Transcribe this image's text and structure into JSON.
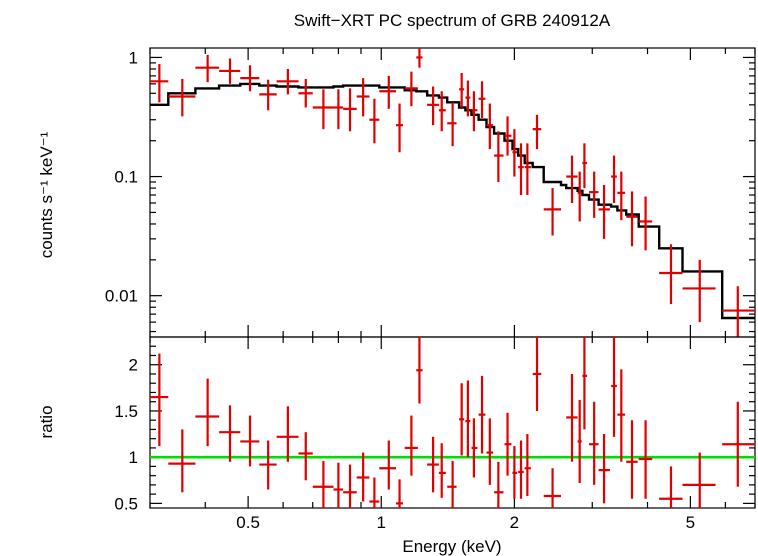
{
  "chart_data": {
    "type": "scatter",
    "title": "Swift−XRT PC spectrum of GRB 240912A",
    "xlabel": "Energy (keV)",
    "x_scale": "log",
    "xlim": [
      0.3,
      7.0
    ],
    "x_ticks": [
      {
        "value": 0.5,
        "label": "0.5"
      },
      {
        "value": 1,
        "label": "1"
      },
      {
        "value": 2,
        "label": "2"
      },
      {
        "value": 5,
        "label": "5"
      }
    ],
    "colors": {
      "data": "#e00000",
      "model": "#000000",
      "unity": "#00dd00"
    },
    "top_panel": {
      "ylabel": "counts s⁻¹ keV⁻¹",
      "y_scale": "log",
      "ylim": [
        0.0045,
        1.2
      ],
      "y_ticks": [
        {
          "value": 1,
          "label": "1"
        },
        {
          "value": 0.1,
          "label": "0.1"
        },
        {
          "value": 0.01,
          "label": "0.01"
        }
      ],
      "data": [
        {
          "x": 0.315,
          "xlo": 0.3,
          "xhi": 0.33,
          "y": 0.63,
          "ylo": 0.42,
          "yhi": 0.88
        },
        {
          "x": 0.355,
          "xlo": 0.33,
          "xhi": 0.38,
          "y": 0.47,
          "ylo": 0.32,
          "yhi": 0.66
        },
        {
          "x": 0.405,
          "xlo": 0.38,
          "xhi": 0.43,
          "y": 0.82,
          "ylo": 0.62,
          "yhi": 1.05
        },
        {
          "x": 0.455,
          "xlo": 0.43,
          "xhi": 0.48,
          "y": 0.77,
          "ylo": 0.6,
          "yhi": 0.98
        },
        {
          "x": 0.505,
          "xlo": 0.48,
          "xhi": 0.53,
          "y": 0.67,
          "ylo": 0.52,
          "yhi": 0.86
        },
        {
          "x": 0.555,
          "xlo": 0.53,
          "xhi": 0.58,
          "y": 0.49,
          "ylo": 0.36,
          "yhi": 0.65
        },
        {
          "x": 0.615,
          "xlo": 0.58,
          "xhi": 0.65,
          "y": 0.63,
          "ylo": 0.49,
          "yhi": 0.8
        },
        {
          "x": 0.675,
          "xlo": 0.65,
          "xhi": 0.7,
          "y": 0.5,
          "ylo": 0.38,
          "yhi": 0.66
        },
        {
          "x": 0.74,
          "xlo": 0.7,
          "xhi": 0.78,
          "y": 0.38,
          "ylo": 0.25,
          "yhi": 0.54
        },
        {
          "x": 0.8,
          "xlo": 0.78,
          "xhi": 0.82,
          "y": 0.38,
          "ylo": 0.25,
          "yhi": 0.54
        },
        {
          "x": 0.85,
          "xlo": 0.82,
          "xhi": 0.88,
          "y": 0.37,
          "ylo": 0.24,
          "yhi": 0.55
        },
        {
          "x": 0.91,
          "xlo": 0.88,
          "xhi": 0.94,
          "y": 0.47,
          "ylo": 0.32,
          "yhi": 0.67
        },
        {
          "x": 0.965,
          "xlo": 0.94,
          "xhi": 0.99,
          "y": 0.3,
          "ylo": 0.19,
          "yhi": 0.45
        },
        {
          "x": 1.04,
          "xlo": 0.99,
          "xhi": 1.08,
          "y": 0.52,
          "ylo": 0.37,
          "yhi": 0.7
        },
        {
          "x": 1.1,
          "xlo": 1.08,
          "xhi": 1.12,
          "y": 0.27,
          "ylo": 0.16,
          "yhi": 0.41
        },
        {
          "x": 1.17,
          "xlo": 1.13,
          "xhi": 1.21,
          "y": 0.55,
          "ylo": 0.39,
          "yhi": 0.76
        },
        {
          "x": 1.22,
          "xlo": 1.2,
          "xhi": 1.24,
          "y": 1.0,
          "ylo": 0.82,
          "yhi": 1.2
        },
        {
          "x": 1.31,
          "xlo": 1.27,
          "xhi": 1.35,
          "y": 0.4,
          "ylo": 0.27,
          "yhi": 0.57
        },
        {
          "x": 1.37,
          "xlo": 1.35,
          "xhi": 1.4,
          "y": 0.36,
          "ylo": 0.24,
          "yhi": 0.52
        },
        {
          "x": 1.45,
          "xlo": 1.41,
          "xhi": 1.48,
          "y": 0.28,
          "ylo": 0.18,
          "yhi": 0.42
        },
        {
          "x": 1.52,
          "xlo": 1.5,
          "xhi": 1.54,
          "y": 0.54,
          "ylo": 0.38,
          "yhi": 0.74
        },
        {
          "x": 1.57,
          "xlo": 1.55,
          "xhi": 1.59,
          "y": 0.46,
          "ylo": 0.32,
          "yhi": 0.64
        },
        {
          "x": 1.62,
          "xlo": 1.6,
          "xhi": 1.65,
          "y": 0.36,
          "ylo": 0.24,
          "yhi": 0.52
        },
        {
          "x": 1.69,
          "xlo": 1.66,
          "xhi": 1.72,
          "y": 0.45,
          "ylo": 0.31,
          "yhi": 0.63
        },
        {
          "x": 1.76,
          "xlo": 1.73,
          "xhi": 1.79,
          "y": 0.27,
          "ylo": 0.17,
          "yhi": 0.41
        },
        {
          "x": 1.84,
          "xlo": 1.8,
          "xhi": 1.89,
          "y": 0.15,
          "ylo": 0.09,
          "yhi": 0.24
        },
        {
          "x": 1.93,
          "xlo": 1.9,
          "xhi": 1.97,
          "y": 0.22,
          "ylo": 0.15,
          "yhi": 0.32
        },
        {
          "x": 2.0,
          "xlo": 1.98,
          "xhi": 2.03,
          "y": 0.16,
          "ylo": 0.1,
          "yhi": 0.25
        },
        {
          "x": 2.07,
          "xlo": 2.04,
          "xhi": 2.1,
          "y": 0.12,
          "ylo": 0.07,
          "yhi": 0.19
        },
        {
          "x": 2.14,
          "xlo": 2.11,
          "xhi": 2.18,
          "y": 0.12,
          "ylo": 0.07,
          "yhi": 0.19
        },
        {
          "x": 2.25,
          "xlo": 2.2,
          "xhi": 2.3,
          "y": 0.25,
          "ylo": 0.17,
          "yhi": 0.33
        },
        {
          "x": 2.44,
          "xlo": 2.33,
          "xhi": 2.55,
          "y": 0.053,
          "ylo": 0.032,
          "yhi": 0.08
        },
        {
          "x": 2.7,
          "xlo": 2.62,
          "xhi": 2.78,
          "y": 0.1,
          "ylo": 0.06,
          "yhi": 0.15
        },
        {
          "x": 2.81,
          "xlo": 2.78,
          "xhi": 2.84,
          "y": 0.073,
          "ylo": 0.042,
          "yhi": 0.11
        },
        {
          "x": 2.88,
          "xlo": 2.85,
          "xhi": 2.92,
          "y": 0.13,
          "ylo": 0.08,
          "yhi": 0.19
        },
        {
          "x": 3.03,
          "xlo": 2.95,
          "xhi": 3.1,
          "y": 0.074,
          "ylo": 0.045,
          "yhi": 0.11
        },
        {
          "x": 3.19,
          "xlo": 3.1,
          "xhi": 3.29,
          "y": 0.053,
          "ylo": 0.03,
          "yhi": 0.085
        },
        {
          "x": 3.36,
          "xlo": 3.31,
          "xhi": 3.41,
          "y": 0.1,
          "ylo": 0.06,
          "yhi": 0.15
        },
        {
          "x": 3.49,
          "xlo": 3.42,
          "xhi": 3.56,
          "y": 0.073,
          "ylo": 0.043,
          "yhi": 0.11
        },
        {
          "x": 3.69,
          "xlo": 3.58,
          "xhi": 3.8,
          "y": 0.046,
          "ylo": 0.026,
          "yhi": 0.075
        },
        {
          "x": 3.96,
          "xlo": 3.82,
          "xhi": 4.1,
          "y": 0.042,
          "ylo": 0.024,
          "yhi": 0.068
        },
        {
          "x": 4.52,
          "xlo": 4.25,
          "xhi": 4.8,
          "y": 0.0155,
          "ylo": 0.0085,
          "yhi": 0.027
        },
        {
          "x": 5.25,
          "xlo": 4.8,
          "xhi": 5.7,
          "y": 0.0115,
          "ylo": 0.006,
          "yhi": 0.02
        },
        {
          "x": 6.4,
          "xlo": 5.9,
          "xhi": 7.0,
          "y": 0.0075,
          "ylo": 0.0045,
          "yhi": 0.012
        }
      ],
      "model": [
        [
          0.3,
          0.4
        ],
        [
          0.33,
          0.5
        ],
        [
          0.38,
          0.55
        ],
        [
          0.43,
          0.58
        ],
        [
          0.48,
          0.6
        ],
        [
          0.53,
          0.58
        ],
        [
          0.58,
          0.57
        ],
        [
          0.65,
          0.56
        ],
        [
          0.7,
          0.56
        ],
        [
          0.78,
          0.57
        ],
        [
          0.82,
          0.58
        ],
        [
          0.88,
          0.58
        ],
        [
          0.94,
          0.58
        ],
        [
          0.99,
          0.56
        ],
        [
          1.08,
          0.56
        ],
        [
          1.13,
          0.53
        ],
        [
          1.2,
          0.52
        ],
        [
          1.27,
          0.48
        ],
        [
          1.35,
          0.46
        ],
        [
          1.41,
          0.42
        ],
        [
          1.5,
          0.38
        ],
        [
          1.55,
          0.36
        ],
        [
          1.6,
          0.33
        ],
        [
          1.66,
          0.3
        ],
        [
          1.73,
          0.26
        ],
        [
          1.8,
          0.23
        ],
        [
          1.9,
          0.2
        ],
        [
          1.98,
          0.17
        ],
        [
          2.04,
          0.15
        ],
        [
          2.11,
          0.13
        ],
        [
          2.2,
          0.12
        ],
        [
          2.33,
          0.09
        ],
        [
          2.55,
          0.085
        ],
        [
          2.62,
          0.08
        ],
        [
          2.78,
          0.076
        ],
        [
          2.85,
          0.07
        ],
        [
          2.95,
          0.064
        ],
        [
          3.1,
          0.058
        ],
        [
          3.31,
          0.056
        ],
        [
          3.42,
          0.052
        ],
        [
          3.58,
          0.048
        ],
        [
          3.82,
          0.038
        ],
        [
          4.25,
          0.025
        ],
        [
          4.8,
          0.016
        ],
        [
          5.9,
          0.0065
        ]
      ],
      "model_end": 7.0
    },
    "bottom_panel": {
      "ylabel": "ratio",
      "y_scale": "linear",
      "ylim": [
        0.45,
        2.3
      ],
      "y_ticks": [
        {
          "value": 2,
          "label": "2"
        },
        {
          "value": 1.5,
          "label": "1.5"
        },
        {
          "value": 1,
          "label": "1"
        },
        {
          "value": 0.5,
          "label": "0.5"
        }
      ],
      "unity_line": 1,
      "data": [
        {
          "x": 0.315,
          "xlo": 0.3,
          "xhi": 0.33,
          "y": 1.65,
          "ylo": 1.12,
          "yhi": 2.12
        },
        {
          "x": 0.355,
          "xlo": 0.33,
          "xhi": 0.38,
          "y": 0.93,
          "ylo": 0.62,
          "yhi": 1.3
        },
        {
          "x": 0.405,
          "xlo": 0.38,
          "xhi": 0.43,
          "y": 1.44,
          "ylo": 1.12,
          "yhi": 1.85
        },
        {
          "x": 0.455,
          "xlo": 0.43,
          "xhi": 0.48,
          "y": 1.27,
          "ylo": 0.95,
          "yhi": 1.56
        },
        {
          "x": 0.505,
          "xlo": 0.48,
          "xhi": 0.53,
          "y": 1.17,
          "ylo": 0.9,
          "yhi": 1.45
        },
        {
          "x": 0.555,
          "xlo": 0.53,
          "xhi": 0.58,
          "y": 0.92,
          "ylo": 0.65,
          "yhi": 1.18
        },
        {
          "x": 0.615,
          "xlo": 0.58,
          "xhi": 0.65,
          "y": 1.22,
          "ylo": 0.95,
          "yhi": 1.55
        },
        {
          "x": 0.675,
          "xlo": 0.65,
          "xhi": 0.7,
          "y": 1.04,
          "ylo": 0.75,
          "yhi": 1.27
        },
        {
          "x": 0.74,
          "xlo": 0.7,
          "xhi": 0.78,
          "y": 0.68,
          "ylo": 0.45,
          "yhi": 0.96
        },
        {
          "x": 0.8,
          "xlo": 0.78,
          "xhi": 0.82,
          "y": 0.65,
          "ylo": 0.45,
          "yhi": 0.94
        },
        {
          "x": 0.85,
          "xlo": 0.82,
          "xhi": 0.88,
          "y": 0.62,
          "ylo": 0.45,
          "yhi": 0.92
        },
        {
          "x": 0.91,
          "xlo": 0.88,
          "xhi": 0.94,
          "y": 0.78,
          "ylo": 0.52,
          "yhi": 1.05
        },
        {
          "x": 0.965,
          "xlo": 0.94,
          "xhi": 0.99,
          "y": 0.52,
          "ylo": 0.45,
          "yhi": 0.78
        },
        {
          "x": 1.04,
          "xlo": 0.99,
          "xhi": 1.08,
          "y": 0.88,
          "ylo": 0.65,
          "yhi": 1.18
        },
        {
          "x": 1.1,
          "xlo": 1.08,
          "xhi": 1.12,
          "y": 0.5,
          "ylo": 0.45,
          "yhi": 0.76
        },
        {
          "x": 1.17,
          "xlo": 1.13,
          "xhi": 1.21,
          "y": 1.1,
          "ylo": 0.8,
          "yhi": 1.45
        },
        {
          "x": 1.22,
          "xlo": 1.2,
          "xhi": 1.24,
          "y": 1.94,
          "ylo": 1.58,
          "yhi": 2.3
        },
        {
          "x": 1.31,
          "xlo": 1.27,
          "xhi": 1.35,
          "y": 0.92,
          "ylo": 0.62,
          "yhi": 1.22
        },
        {
          "x": 1.37,
          "xlo": 1.35,
          "xhi": 1.4,
          "y": 0.83,
          "ylo": 0.56,
          "yhi": 1.15
        },
        {
          "x": 1.45,
          "xlo": 1.41,
          "xhi": 1.48,
          "y": 0.68,
          "ylo": 0.45,
          "yhi": 0.96
        },
        {
          "x": 1.52,
          "xlo": 1.5,
          "xhi": 1.54,
          "y": 1.41,
          "ylo": 1.02,
          "yhi": 1.8
        },
        {
          "x": 1.57,
          "xlo": 1.55,
          "xhi": 1.59,
          "y": 1.39,
          "ylo": 1.0,
          "yhi": 1.83
        },
        {
          "x": 1.62,
          "xlo": 1.6,
          "xhi": 1.65,
          "y": 1.1,
          "ylo": 0.78,
          "yhi": 1.42
        },
        {
          "x": 1.69,
          "xlo": 1.66,
          "xhi": 1.72,
          "y": 1.46,
          "ylo": 1.04,
          "yhi": 1.88
        },
        {
          "x": 1.76,
          "xlo": 1.73,
          "xhi": 1.79,
          "y": 1.05,
          "ylo": 0.7,
          "yhi": 1.42
        },
        {
          "x": 1.84,
          "xlo": 1.8,
          "xhi": 1.89,
          "y": 0.62,
          "ylo": 0.45,
          "yhi": 0.95
        },
        {
          "x": 1.93,
          "xlo": 1.9,
          "xhi": 1.97,
          "y": 1.14,
          "ylo": 0.8,
          "yhi": 1.48
        },
        {
          "x": 2.0,
          "xlo": 1.98,
          "xhi": 2.03,
          "y": 0.83,
          "ylo": 0.55,
          "yhi": 1.12
        },
        {
          "x": 2.07,
          "xlo": 2.04,
          "xhi": 2.1,
          "y": 0.84,
          "ylo": 0.55,
          "yhi": 1.18
        },
        {
          "x": 2.14,
          "xlo": 2.11,
          "xhi": 2.18,
          "y": 0.88,
          "ylo": 0.58,
          "yhi": 1.25
        },
        {
          "x": 2.25,
          "xlo": 2.2,
          "xhi": 2.3,
          "y": 1.9,
          "ylo": 1.5,
          "yhi": 2.3
        },
        {
          "x": 2.44,
          "xlo": 2.33,
          "xhi": 2.55,
          "y": 0.58,
          "ylo": 0.45,
          "yhi": 0.88
        },
        {
          "x": 2.7,
          "xlo": 2.62,
          "xhi": 2.78,
          "y": 1.43,
          "ylo": 0.95,
          "yhi": 1.9
        },
        {
          "x": 2.81,
          "xlo": 2.78,
          "xhi": 2.84,
          "y": 1.17,
          "ylo": 0.72,
          "yhi": 1.62
        },
        {
          "x": 2.88,
          "xlo": 2.85,
          "xhi": 2.92,
          "y": 1.88,
          "ylo": 1.3,
          "yhi": 2.3
        },
        {
          "x": 3.03,
          "xlo": 2.95,
          "xhi": 3.1,
          "y": 1.14,
          "ylo": 0.7,
          "yhi": 1.6
        },
        {
          "x": 3.19,
          "xlo": 3.1,
          "xhi": 3.29,
          "y": 0.86,
          "ylo": 0.5,
          "yhi": 1.25
        },
        {
          "x": 3.36,
          "xlo": 3.31,
          "xhi": 3.41,
          "y": 1.77,
          "ylo": 1.22,
          "yhi": 2.3
        },
        {
          "x": 3.49,
          "xlo": 3.42,
          "xhi": 3.56,
          "y": 1.46,
          "ylo": 0.95,
          "yhi": 1.95
        },
        {
          "x": 3.69,
          "xlo": 3.58,
          "xhi": 3.8,
          "y": 0.95,
          "ylo": 0.55,
          "yhi": 1.4
        },
        {
          "x": 3.96,
          "xlo": 3.82,
          "xhi": 4.1,
          "y": 0.98,
          "ylo": 0.55,
          "yhi": 1.4
        },
        {
          "x": 4.52,
          "xlo": 4.25,
          "xhi": 4.8,
          "y": 0.55,
          "ylo": 0.45,
          "yhi": 0.9
        },
        {
          "x": 5.25,
          "xlo": 4.8,
          "xhi": 5.7,
          "y": 0.7,
          "ylo": 0.45,
          "yhi": 1.05
        },
        {
          "x": 6.4,
          "xlo": 5.9,
          "xhi": 7.0,
          "y": 1.14,
          "ylo": 0.68,
          "yhi": 1.6
        }
      ]
    }
  }
}
